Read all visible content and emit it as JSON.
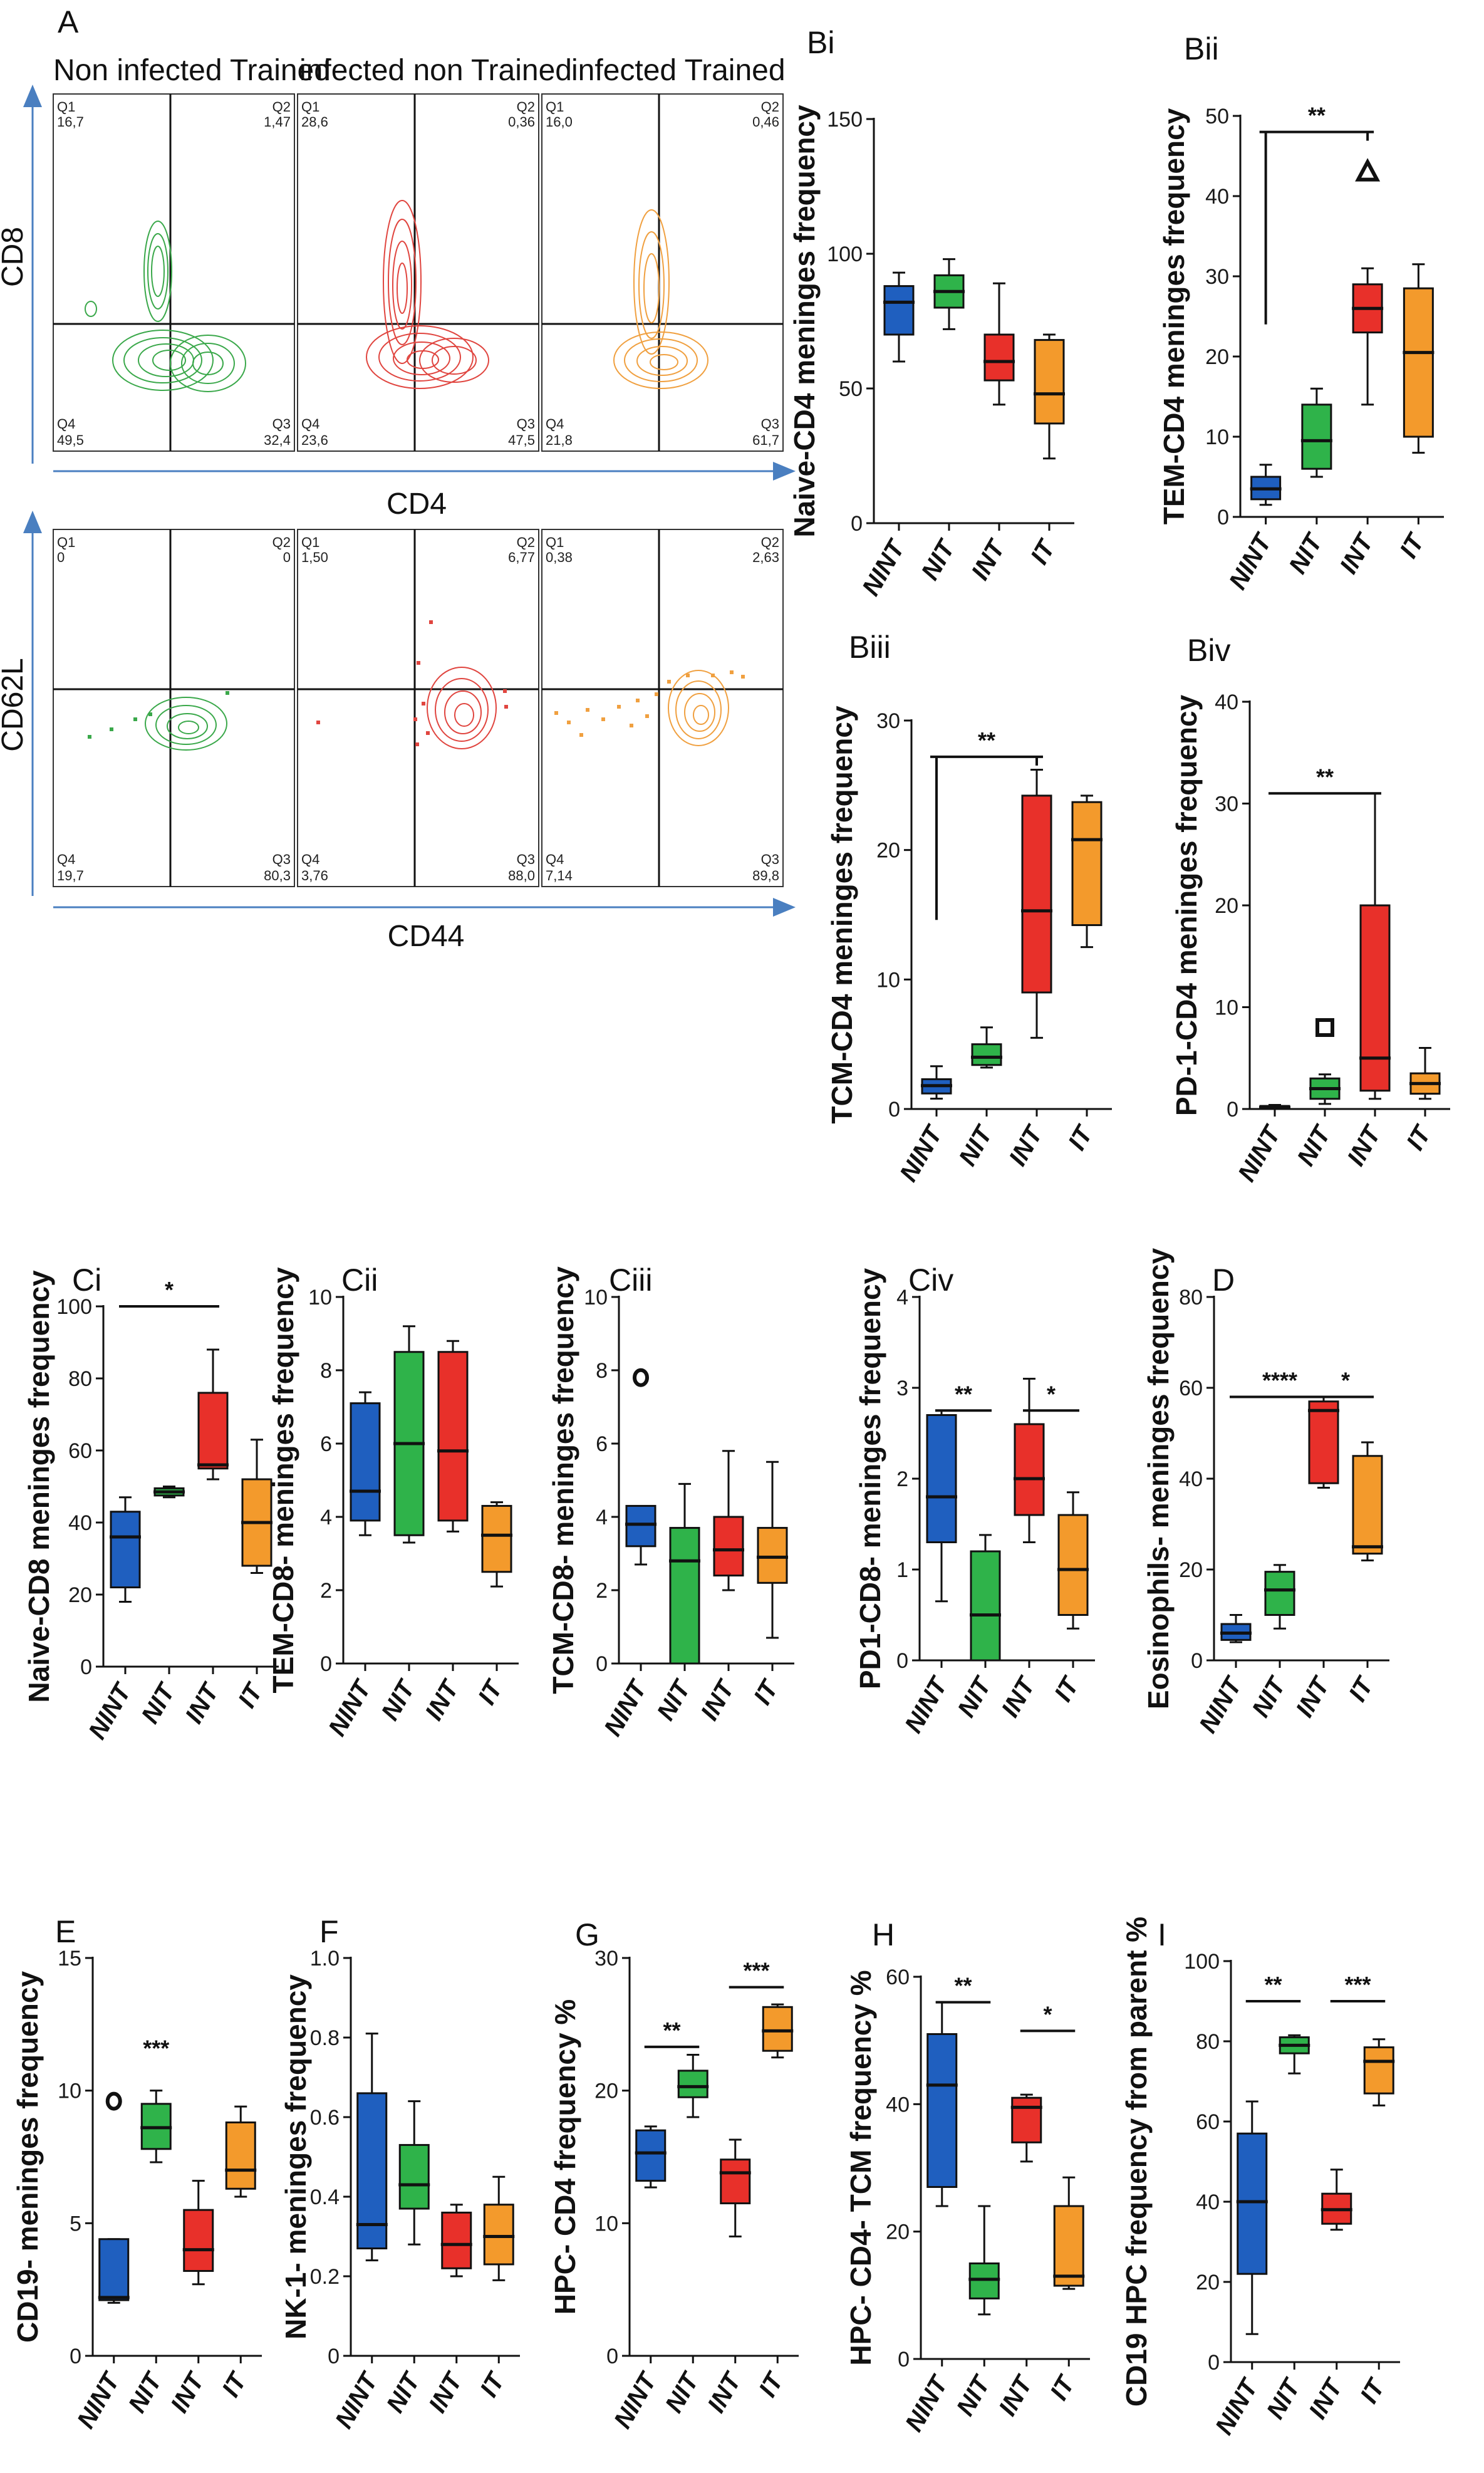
{
  "colors": {
    "NINT": "#1f5fbf",
    "NIT": "#2fb34a",
    "INT": "#e8302a",
    "IT": "#f39a2c",
    "flow_green": "#3aa84a",
    "flow_red": "#e0453f",
    "flow_orange": "#f0a040",
    "axis_blue": "#4a7fc0"
  },
  "flow": {
    "panel_label": "A",
    "group_titles": [
      "Non infected Trained",
      "infected non Trained",
      "infected Trained"
    ],
    "row1": {
      "y_label": "CD8",
      "x_label": "CD4",
      "quadrants": [
        {
          "Q1": "16,7",
          "Q2": "1,47",
          "Q3": "32,4",
          "Q4": "49,5"
        },
        {
          "Q1": "28,6",
          "Q2": "0,36",
          "Q3": "47,5",
          "Q4": "23,6"
        },
        {
          "Q1": "16,0",
          "Q2": "0,46",
          "Q3": "61,7",
          "Q4": "21,8"
        }
      ]
    },
    "row2": {
      "y_label": "CD62L",
      "x_label": "CD44",
      "quadrants": [
        {
          "Q1": "0",
          "Q2": "0",
          "Q3": "80,3",
          "Q4": "19,7"
        },
        {
          "Q1": "1,50",
          "Q2": "6,77",
          "Q3": "88,0",
          "Q4": "3,76"
        },
        {
          "Q1": "0,38",
          "Q2": "2,63",
          "Q3": "89,8",
          "Q4": "7,14"
        }
      ]
    },
    "quad_names": {
      "q1": "Q1",
      "q2": "Q2",
      "q3": "Q3",
      "q4": "Q4"
    }
  },
  "chart_data": [
    {
      "id": "Bi",
      "type": "box",
      "label": "Bi",
      "ylabel": "Naive-CD4 meninges frequency",
      "ylim": [
        0,
        150
      ],
      "yticks": [
        "0",
        "50",
        "100",
        "150"
      ],
      "categories": [
        "NINT",
        "NIT",
        "INT",
        "IT"
      ],
      "boxes": [
        {
          "min": 60,
          "q1": 70,
          "median": 82,
          "q3": 88,
          "max": 93
        },
        {
          "min": 72,
          "q1": 80,
          "median": 86,
          "q3": 92,
          "max": 98
        },
        {
          "min": 44,
          "q1": 53,
          "median": 60,
          "q3": 70,
          "max": 89
        },
        {
          "min": 24,
          "q1": 37,
          "median": 48,
          "q3": 68,
          "max": 70
        }
      ],
      "outliers": [],
      "significance": []
    },
    {
      "id": "Bii",
      "type": "box",
      "label": "Bii",
      "ylabel": "TEM-CD4 meninges frequency",
      "ylim": [
        0,
        50
      ],
      "yticks": [
        "0",
        "10",
        "20",
        "30",
        "40",
        "50"
      ],
      "categories": [
        "NINT",
        "NIT",
        "INT",
        "IT"
      ],
      "boxes": [
        {
          "min": 1.5,
          "q1": 2.2,
          "median": 3.5,
          "q3": 5,
          "max": 6.5
        },
        {
          "min": 5,
          "q1": 6,
          "median": 9.5,
          "q3": 14,
          "max": 16
        },
        {
          "min": 14,
          "q1": 23,
          "median": 26,
          "q3": 29,
          "max": 31
        },
        {
          "min": 8,
          "q1": 10,
          "median": 20.5,
          "q3": 28.5,
          "max": 31.5
        }
      ],
      "outliers": [
        {
          "group": "INT",
          "value": 43,
          "shape": "triangle"
        }
      ],
      "significance": [
        {
          "text": "**",
          "from": "NINT",
          "to": "INT",
          "level": 48,
          "type": "bracket",
          "drop": 24
        }
      ]
    },
    {
      "id": "Biii",
      "type": "box",
      "label": "Biii",
      "ylabel": "TCM-CD4 meninges frequency",
      "ylim": [
        0,
        30
      ],
      "yticks": [
        "0",
        "10",
        "20",
        "30"
      ],
      "categories": [
        "NINT",
        "NIT",
        "INT",
        "IT"
      ],
      "boxes": [
        {
          "min": 0.8,
          "q1": 1.2,
          "median": 1.8,
          "q3": 2.3,
          "max": 3.3
        },
        {
          "min": 3.2,
          "q1": 3.4,
          "median": 4,
          "q3": 5,
          "max": 6.3
        },
        {
          "min": 5.5,
          "q1": 9,
          "median": 15.3,
          "q3": 24.2,
          "max": 26.2
        },
        {
          "min": 12.5,
          "q1": 14.2,
          "median": 20.8,
          "q3": 23.7,
          "max": 24.2
        }
      ],
      "outliers": [],
      "significance": [
        {
          "text": "**",
          "from": "NINT",
          "to": "INT",
          "level": 27.2,
          "type": "bracket",
          "drop": 14.6
        }
      ]
    },
    {
      "id": "Biv",
      "type": "box",
      "label": "Biv",
      "ylabel": "PD-1-CD4 meninges frequency",
      "ylim": [
        0,
        40
      ],
      "yticks": [
        "0",
        "10",
        "20",
        "30",
        "40"
      ],
      "categories": [
        "NINT",
        "NIT",
        "INT",
        "IT"
      ],
      "boxes": [
        {
          "min": 0,
          "q1": 0.05,
          "median": 0.15,
          "q3": 0.3,
          "max": 0.4
        },
        {
          "min": 0.5,
          "q1": 1,
          "median": 2,
          "q3": 3,
          "max": 3.4
        },
        {
          "min": 1,
          "q1": 1.8,
          "median": 5,
          "q3": 20,
          "max": 31
        },
        {
          "min": 1,
          "q1": 1.5,
          "median": 2.5,
          "q3": 3.5,
          "max": 6
        }
      ],
      "outliers": [
        {
          "group": "NIT",
          "value": 8,
          "shape": "square"
        }
      ],
      "significance": [
        {
          "text": "**",
          "from": "NINT",
          "to": "INT",
          "level": 31,
          "type": "line"
        }
      ]
    },
    {
      "id": "Ci",
      "type": "box",
      "label": "Ci",
      "ylabel": "Naive-CD8 meninges frequency",
      "ylim": [
        0,
        100
      ],
      "yticks": [
        "0",
        "20",
        "40",
        "60",
        "80",
        "100"
      ],
      "categories": [
        "NINT",
        "NIT",
        "INT",
        "IT"
      ],
      "boxes": [
        {
          "min": 18,
          "q1": 22,
          "median": 36,
          "q3": 43,
          "max": 47
        },
        {
          "min": 47,
          "q1": 47.5,
          "median": 48.5,
          "q3": 49.5,
          "max": 50
        },
        {
          "min": 52,
          "q1": 55,
          "median": 56,
          "q3": 76,
          "max": 88
        },
        {
          "min": 26,
          "q1": 28,
          "median": 40,
          "q3": 52,
          "max": 63
        }
      ],
      "outliers": [],
      "significance": [
        {
          "text": "*",
          "from": "NINT",
          "to": "INT",
          "level": 100,
          "type": "line"
        }
      ]
    },
    {
      "id": "Cii",
      "type": "box",
      "label": "Cii",
      "ylabel": "TEM-CD8- meninges frequency",
      "ylim": [
        0,
        10
      ],
      "yticks": [
        "0",
        "2",
        "4",
        "6",
        "8",
        "10"
      ],
      "categories": [
        "NINT",
        "NIT",
        "INT",
        "IT"
      ],
      "boxes": [
        {
          "min": 3.5,
          "q1": 3.9,
          "median": 4.7,
          "q3": 7.1,
          "max": 7.4
        },
        {
          "min": 3.3,
          "q1": 3.5,
          "median": 6,
          "q3": 8.5,
          "max": 9.2
        },
        {
          "min": 3.6,
          "q1": 3.9,
          "median": 5.8,
          "q3": 8.5,
          "max": 8.8
        },
        {
          "min": 2.1,
          "q1": 2.5,
          "median": 3.5,
          "q3": 4.3,
          "max": 4.4
        }
      ],
      "outliers": [],
      "significance": []
    },
    {
      "id": "Ciii",
      "type": "box",
      "label": "Ciii",
      "ylabel": "TCM-CD8- meninges frequency",
      "ylim": [
        0,
        10
      ],
      "yticks": [
        "0",
        "2",
        "4",
        "6",
        "8",
        "10"
      ],
      "categories": [
        "NINT",
        "NIT",
        "INT",
        "IT"
      ],
      "boxes": [
        {
          "min": 2.7,
          "q1": 3.2,
          "median": 3.8,
          "q3": 4.3,
          "max": 4.3
        },
        {
          "min": 0,
          "q1": 0,
          "median": 2.8,
          "q3": 3.7,
          "max": 4.9
        },
        {
          "min": 2,
          "q1": 2.4,
          "median": 3.1,
          "q3": 4,
          "max": 5.8
        },
        {
          "min": 0.7,
          "q1": 2.2,
          "median": 2.9,
          "q3": 3.7,
          "max": 5.5
        }
      ],
      "outliers": [
        {
          "group": "NINT",
          "value": 7.8,
          "shape": "circle"
        }
      ],
      "significance": []
    },
    {
      "id": "Civ",
      "type": "box",
      "label": "Civ",
      "ylabel": "PD1-CD8- meninges frequency",
      "ylim": [
        0,
        4
      ],
      "yticks": [
        "0",
        "1",
        "2",
        "3",
        "4"
      ],
      "categories": [
        "NINT",
        "NIT",
        "INT",
        "IT"
      ],
      "boxes": [
        {
          "min": 0.65,
          "q1": 1.3,
          "median": 1.8,
          "q3": 2.7,
          "max": 2.75
        },
        {
          "min": 0,
          "q1": 0,
          "median": 0.5,
          "q3": 1.2,
          "max": 1.38
        },
        {
          "min": 1.3,
          "q1": 1.6,
          "median": 2,
          "q3": 2.6,
          "max": 3.1
        },
        {
          "min": 0.35,
          "q1": 0.5,
          "median": 1,
          "q3": 1.6,
          "max": 1.85
        }
      ],
      "outliers": [],
      "significance": [
        {
          "text": "**",
          "from": "NINT",
          "to": "NIT",
          "level": 2.75,
          "type": "line"
        },
        {
          "text": "*",
          "from": "INT",
          "to": "IT",
          "level": 2.75,
          "type": "line"
        }
      ]
    },
    {
      "id": "D",
      "type": "box",
      "label": "D",
      "ylabel": "Eosinophils- meninges frequency",
      "ylim": [
        0,
        80
      ],
      "yticks": [
        "0",
        "20",
        "40",
        "60",
        "80"
      ],
      "categories": [
        "NINT",
        "NIT",
        "INT",
        "IT"
      ],
      "boxes": [
        {
          "min": 4,
          "q1": 4.5,
          "median": 6,
          "q3": 8,
          "max": 10
        },
        {
          "min": 7,
          "q1": 10,
          "median": 15.5,
          "q3": 19.5,
          "max": 21
        },
        {
          "min": 38,
          "q1": 39,
          "median": 55,
          "q3": 57,
          "max": 58
        },
        {
          "min": 22,
          "q1": 23.5,
          "median": 25,
          "q3": 45,
          "max": 48
        }
      ],
      "outliers": [],
      "significance": [
        {
          "text": "****",
          "from": "NINT",
          "to": "INT",
          "level": 58,
          "type": "line"
        },
        {
          "text": "*",
          "from": "INT",
          "to": "IT",
          "level": 58,
          "type": "line"
        }
      ]
    },
    {
      "id": "E",
      "type": "box",
      "label": "E",
      "ylabel": "CD19- meninges frequency",
      "ylim": [
        0,
        15
      ],
      "yticks": [
        "0",
        "5",
        "10",
        "15"
      ],
      "categories": [
        "NINT",
        "NIT",
        "INT",
        "IT"
      ],
      "boxes": [
        {
          "min": 2,
          "q1": 2.1,
          "median": 2.2,
          "q3": 4.4,
          "max": 4.4
        },
        {
          "min": 7.3,
          "q1": 7.8,
          "median": 8.6,
          "q3": 9.5,
          "max": 10
        },
        {
          "min": 2.7,
          "q1": 3.2,
          "median": 4,
          "q3": 5.5,
          "max": 6.6
        },
        {
          "min": 6,
          "q1": 6.3,
          "median": 7,
          "q3": 8.8,
          "max": 9.4
        }
      ],
      "outliers": [
        {
          "group": "NINT",
          "value": 9.6,
          "shape": "circle"
        }
      ],
      "significance": [
        {
          "text": "***",
          "group": "NIT",
          "level": 11.3,
          "type": "text"
        }
      ]
    },
    {
      "id": "F",
      "type": "box",
      "label": "F",
      "ylabel": "NK-1- meninges frequency",
      "ylim": [
        0,
        1.0
      ],
      "yticks": [
        "0",
        "0.2",
        "0.4",
        "0.6",
        "0.8",
        "1.0"
      ],
      "categories": [
        "NINT",
        "NIT",
        "INT",
        "IT"
      ],
      "boxes": [
        {
          "min": 0.24,
          "q1": 0.27,
          "median": 0.33,
          "q3": 0.66,
          "max": 0.81
        },
        {
          "min": 0.28,
          "q1": 0.37,
          "median": 0.43,
          "q3": 0.53,
          "max": 0.64
        },
        {
          "min": 0.2,
          "q1": 0.22,
          "median": 0.28,
          "q3": 0.36,
          "max": 0.38
        },
        {
          "min": 0.19,
          "q1": 0.23,
          "median": 0.3,
          "q3": 0.38,
          "max": 0.45
        }
      ],
      "outliers": [],
      "significance": []
    },
    {
      "id": "G",
      "type": "box",
      "label": "G",
      "ylabel": "HPC- CD4 frequency %",
      "ylim": [
        0,
        30
      ],
      "yticks": [
        "0",
        "10",
        "20",
        "30"
      ],
      "categories": [
        "NINT",
        "NIT",
        "INT",
        "IT"
      ],
      "boxes": [
        {
          "min": 12.7,
          "q1": 13.2,
          "median": 15.3,
          "q3": 17,
          "max": 17.3
        },
        {
          "min": 18,
          "q1": 19.5,
          "median": 20.3,
          "q3": 21.5,
          "max": 22.7
        },
        {
          "min": 9,
          "q1": 11.5,
          "median": 13.8,
          "q3": 14.8,
          "max": 16.3
        },
        {
          "min": 22.5,
          "q1": 23,
          "median": 24.5,
          "q3": 26.3,
          "max": 26.5
        }
      ],
      "outliers": [],
      "significance": [
        {
          "text": "**",
          "from": "NINT",
          "to": "NIT",
          "level": 23.3,
          "type": "line"
        },
        {
          "text": "***",
          "from": "INT",
          "to": "IT",
          "level": 27.8,
          "type": "line"
        }
      ]
    },
    {
      "id": "H",
      "type": "box",
      "label": "H",
      "ylabel": "HPC- CD4- TCM frequency %",
      "ylim": [
        0,
        60
      ],
      "yticks": [
        "0",
        "20",
        "40",
        "60"
      ],
      "categories": [
        "NINT",
        "NIT",
        "INT",
        "IT"
      ],
      "boxes": [
        {
          "min": 24,
          "q1": 27,
          "median": 43,
          "q3": 51,
          "max": 56
        },
        {
          "min": 7,
          "q1": 9.5,
          "median": 12.5,
          "q3": 15,
          "max": 24
        },
        {
          "min": 31,
          "q1": 34,
          "median": 39.5,
          "q3": 41,
          "max": 41.5
        },
        {
          "min": 11,
          "q1": 11.5,
          "median": 13,
          "q3": 24,
          "max": 28.5
        }
      ],
      "outliers": [],
      "significance": [
        {
          "text": "**",
          "from": "NINT",
          "to": "NIT",
          "level": 56,
          "type": "line"
        },
        {
          "text": "*",
          "from": "INT",
          "to": "IT",
          "level": 51.5,
          "type": "line"
        }
      ]
    },
    {
      "id": "I",
      "type": "box",
      "label": "I",
      "ylabel": "CD19 HPC  frequency from parent %",
      "ylim": [
        0,
        100
      ],
      "yticks": [
        "0",
        "20",
        "40",
        "60",
        "80",
        "100"
      ],
      "categories": [
        "NINT",
        "NIT",
        "INT",
        "IT"
      ],
      "boxes": [
        {
          "min": 7,
          "q1": 22,
          "median": 40,
          "q3": 57,
          "max": 65
        },
        {
          "min": 72,
          "q1": 77,
          "median": 79,
          "q3": 81,
          "max": 81.5
        },
        {
          "min": 33,
          "q1": 34.5,
          "median": 38,
          "q3": 42,
          "max": 48
        },
        {
          "min": 64,
          "q1": 67,
          "median": 75,
          "q3": 78.5,
          "max": 80.5
        }
      ],
      "outliers": [],
      "significance": [
        {
          "text": "**",
          "from": "NINT",
          "to": "NIT",
          "level": 90,
          "type": "line"
        },
        {
          "text": "***",
          "from": "INT",
          "to": "IT",
          "level": 90,
          "type": "line"
        }
      ]
    }
  ]
}
